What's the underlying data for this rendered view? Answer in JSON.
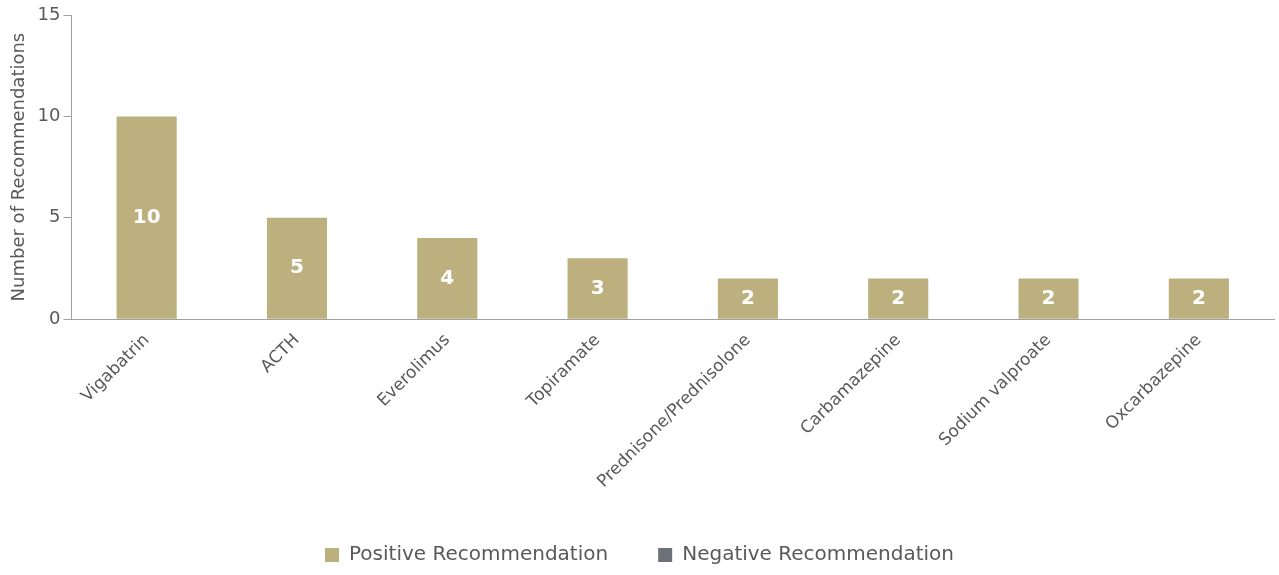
{
  "chart_data": {
    "type": "bar",
    "ylabel": "Number of Recommendations",
    "categories": [
      "Vigabatrin",
      "ACTH",
      "Everolimus",
      "Topiramate",
      "Prednisone/Prednisolone",
      "Carbamazepine",
      "Sodium valproate",
      "Oxcarbazepine"
    ],
    "series": [
      {
        "name": "Positive Recommendation",
        "color": "#bdb07f",
        "values": [
          10,
          5,
          4,
          3,
          2,
          2,
          2,
          2
        ],
        "value_labels": [
          "10",
          "5",
          "4",
          "3",
          "2",
          "2",
          "2",
          "2"
        ]
      },
      {
        "name": "Negative Recommendation",
        "color": "#6d7278",
        "values": [
          0,
          0,
          0,
          0,
          0,
          0,
          0,
          0
        ]
      }
    ],
    "stacked": true,
    "ylim": [
      0,
      15
    ],
    "yticks": [
      0,
      5,
      10,
      15
    ],
    "grid": false,
    "legend": "bottom"
  }
}
